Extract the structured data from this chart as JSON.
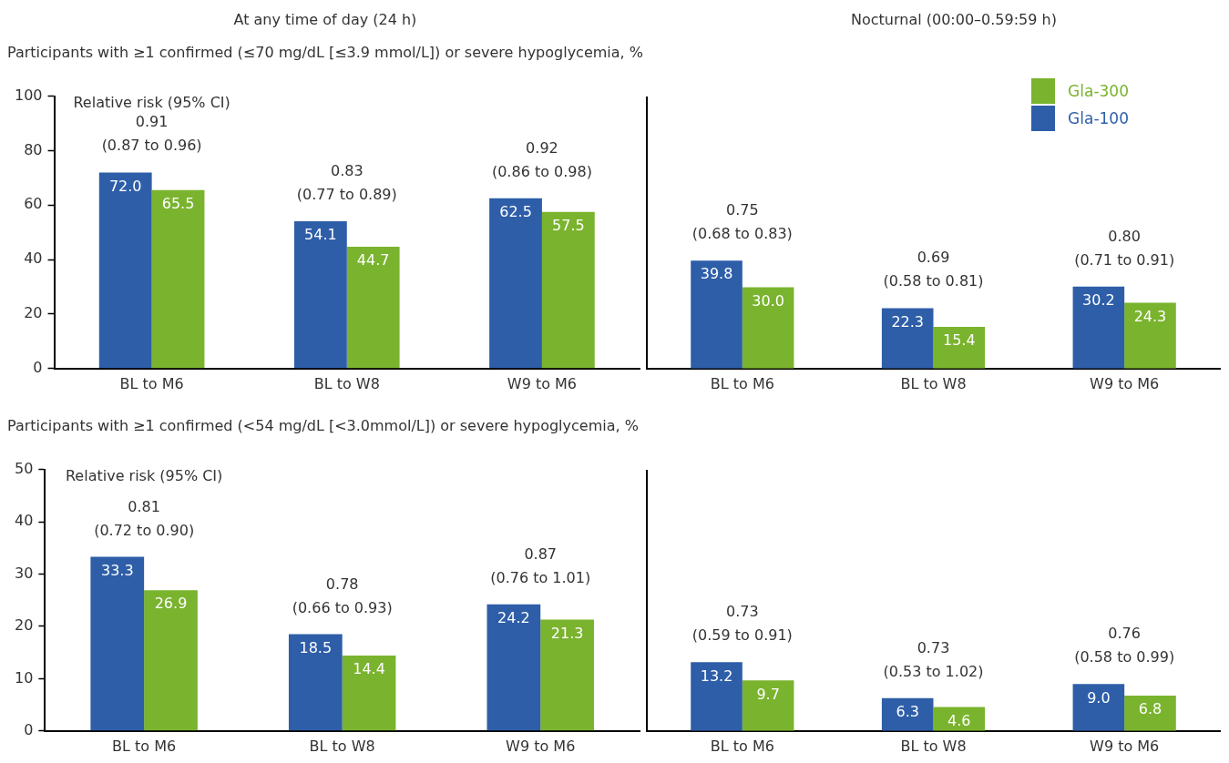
{
  "chart_data": [
    {
      "type": "bar",
      "title": "At any time of day (24 h)",
      "subtitle": "Participants with ≥1 confirmed (≤70 mg/dL [≤3.9 mmol/L]) or severe hypoglycemia, %",
      "categories": [
        "BL to M6",
        "BL to W8",
        "W9 to M6"
      ],
      "ylim": [
        0,
        100
      ],
      "yticks": [
        0,
        20,
        40,
        60,
        80,
        100
      ],
      "grid": false,
      "series": [
        {
          "color": "#2e5ea8",
          "values": [
            72.0,
            54.1,
            62.5
          ],
          "value_labels": [
            "72.0",
            "54.1",
            "62.5"
          ]
        },
        {
          "color": "#7ab32e",
          "values": [
            65.5,
            44.7,
            57.5
          ],
          "value_labels": [
            "65.5",
            "44.7",
            "57.5"
          ]
        }
      ],
      "annotations": [
        "Relative risk (95% CI)",
        "0.91\n(0.87 to 0.96)",
        "0.83\n(0.77 to 0.89)",
        "0.92\n(0.86 to 0.98)"
      ]
    },
    {
      "type": "bar",
      "title": "Nocturnal (00:00–0.59:59 h)",
      "categories": [
        "BL to M6",
        "BL to W8",
        "W9 to M6"
      ],
      "ylim": [
        0,
        100
      ],
      "tick_labels": "x",
      "grid": false,
      "legend": "top right",
      "series": [
        {
          "name": "Gla-100",
          "color": "#2e5ea8",
          "values": [
            39.8,
            22.3,
            30.2
          ],
          "value_labels": [
            "39.8",
            "22.3",
            "30.2"
          ]
        },
        {
          "name": "Gla-300",
          "color": "#7ab32e",
          "values": [
            30.0,
            15.4,
            24.3
          ],
          "value_labels": [
            "30.0",
            "15.4",
            "24.3"
          ]
        }
      ],
      "annotations": [
        "0.75\n(0.68 to 0.83)",
        "0.69\n(0.58 to 0.81)",
        "0.80\n(0.71 to 0.91)"
      ]
    },
    {
      "type": "bar",
      "subtitle": "Participants with ≥1 confirmed (<54 mg/dL [<3.0mmol/L]) or severe hypoglycemia, %",
      "categories": [
        "BL to M6",
        "BL to W8",
        "W9 to M6"
      ],
      "ylim": [
        0,
        50
      ],
      "yticks": [
        0,
        10,
        20,
        30,
        40,
        50
      ],
      "grid": false,
      "series": [
        {
          "color": "#2e5ea8",
          "values": [
            33.3,
            18.5,
            24.2
          ],
          "value_labels": [
            "33.3",
            "18.5",
            "24.2"
          ]
        },
        {
          "color": "#7ab32e",
          "values": [
            26.9,
            14.4,
            21.3
          ],
          "value_labels": [
            "26.9",
            "14.4",
            "21.3"
          ]
        }
      ],
      "annotations": [
        "Relative risk (95% CI)",
        "0.81\n(0.72 to 0.90)",
        "0.78\n(0.66 to 0.93)",
        "0.87\n(0.76 to 1.01)"
      ]
    },
    {
      "type": "bar",
      "categories": [
        "BL to M6",
        "BL to W8",
        "W9 to M6"
      ],
      "ylim": [
        0,
        50
      ],
      "tick_labels": "x",
      "grid": false,
      "series": [
        {
          "color": "#2e5ea8",
          "values": [
            13.2,
            6.3,
            9.0
          ],
          "value_labels": [
            "13.2",
            "6.3",
            "9.0"
          ]
        },
        {
          "color": "#7ab32e",
          "values": [
            9.7,
            4.6,
            6.8
          ],
          "value_labels": [
            "9.7",
            "4.6",
            "6.8"
          ]
        }
      ],
      "annotations": [
        "0.73\n(0.59 to 0.91)",
        "0.73\n(0.53 to 1.02)",
        "0.76\n(0.58 to 0.99)"
      ]
    }
  ]
}
